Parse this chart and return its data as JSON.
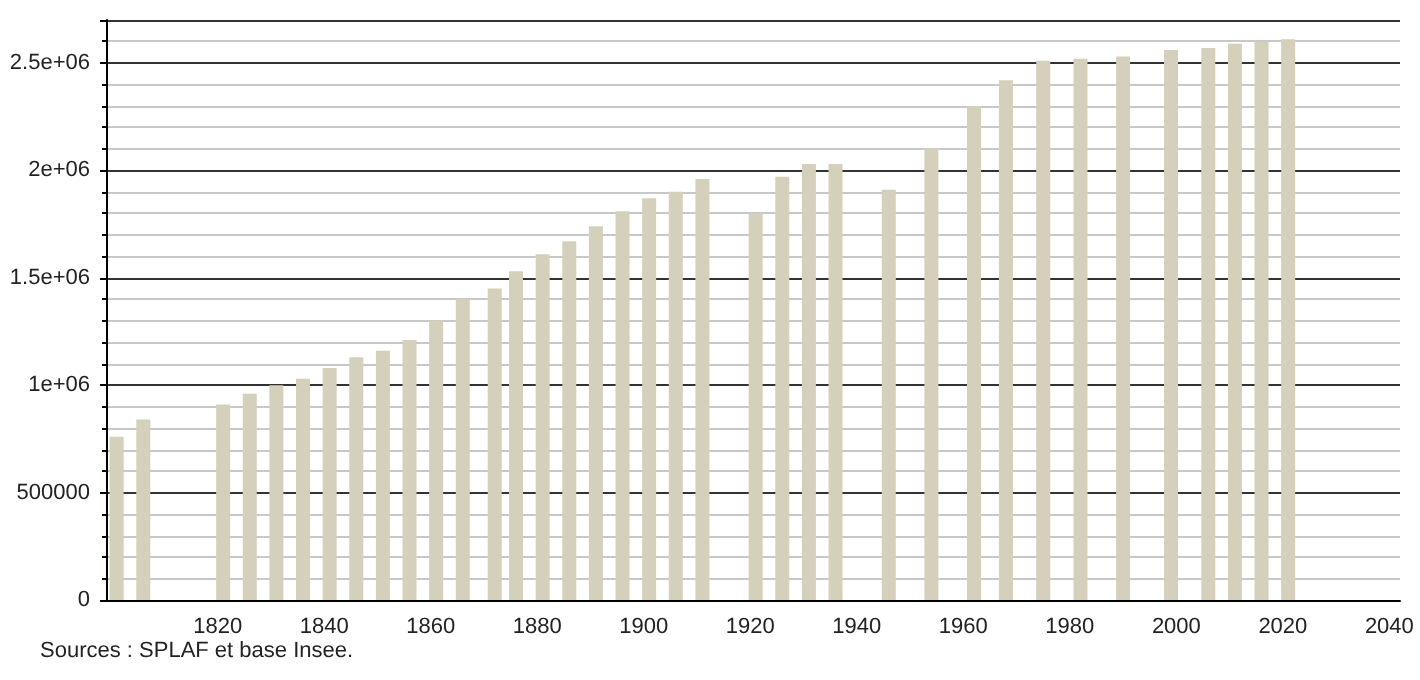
{
  "chart_data": {
    "type": "bar",
    "x": [
      1801,
      1806,
      1821,
      1826,
      1831,
      1836,
      1841,
      1846,
      1851,
      1856,
      1861,
      1866,
      1872,
      1876,
      1881,
      1886,
      1891,
      1896,
      1901,
      1906,
      1911,
      1921,
      1926,
      1931,
      1936,
      1946,
      1954,
      1962,
      1968,
      1975,
      1982,
      1990,
      1999,
      2006,
      2011,
      2016,
      2021
    ],
    "values": [
      760000,
      840000,
      910000,
      960000,
      1000000,
      1030000,
      1080000,
      1130000,
      1160000,
      1210000,
      1300000,
      1400000,
      1450000,
      1530000,
      1610000,
      1670000,
      1740000,
      1810000,
      1870000,
      1900000,
      1960000,
      1800000,
      1970000,
      2030000,
      2030000,
      1910000,
      2100000,
      2300000,
      2420000,
      2510000,
      2520000,
      2530000,
      2560000,
      2570000,
      2590000,
      2600000,
      2610000
    ],
    "color": "#d4d0bc",
    "xlim": [
      1799,
      2042
    ],
    "xticks": [
      1820,
      1840,
      1860,
      1880,
      1900,
      1920,
      1940,
      1960,
      1980,
      2000,
      2020,
      2040
    ],
    "ylim": [
      0,
      2700000
    ],
    "yticks": [
      0,
      500000,
      {
        "value": 1000000,
        "label": "1e+06"
      },
      {
        "value": 1500000,
        "label": "1.5e+06"
      },
      {
        "value": 2000000,
        "label": "2e+06"
      },
      {
        "value": 2500000,
        "label": "2.5e+06"
      }
    ],
    "grid": "y",
    "annotations": [
      "Sources : SPLAF et base Insee."
    ]
  }
}
